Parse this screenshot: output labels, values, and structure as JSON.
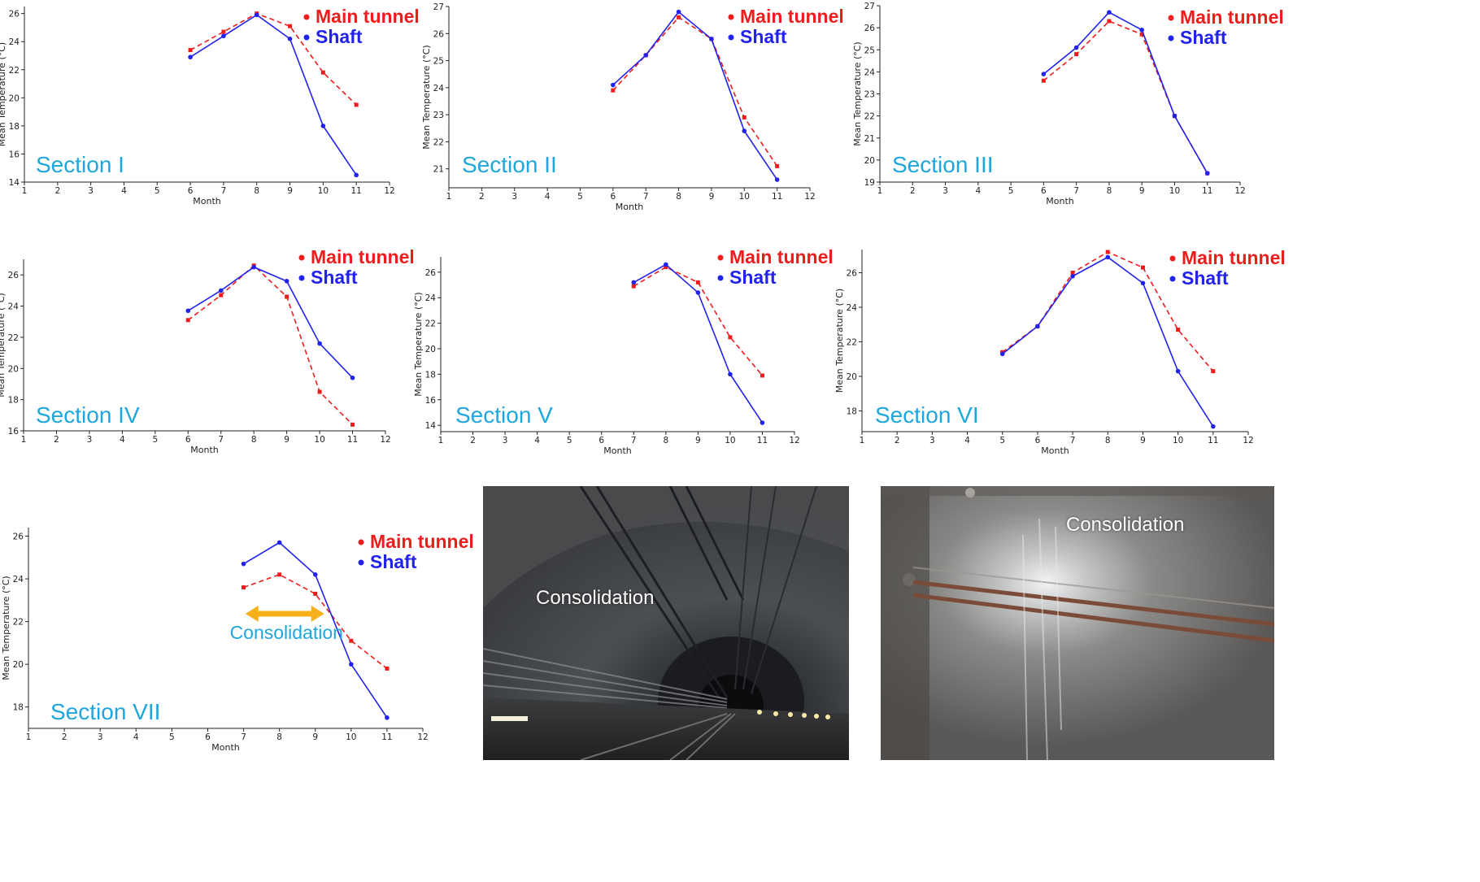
{
  "colors": {
    "main_tunnel": "#ee1c1c",
    "shaft": "#2222ee",
    "section_label": "#1fa6dc",
    "arrow": "#f5b01a"
  },
  "legend": {
    "main": "Main tunnel",
    "shaft": "Shaft"
  },
  "consolidation_note": "Consolidation",
  "chart_data": [
    {
      "type": "line",
      "section": "Section I",
      "xlabel": "Month",
      "ylabel": "Mean Temperature (°C)",
      "xlim": [
        1,
        12
      ],
      "ylim": [
        14,
        26.5
      ],
      "xticks": [
        1,
        2,
        3,
        4,
        5,
        6,
        7,
        8,
        9,
        10,
        11,
        12
      ],
      "yticks": [
        14,
        16,
        18,
        20,
        22,
        24,
        26
      ],
      "series": [
        {
          "name": "Main tunnel",
          "x": [
            6,
            7,
            8,
            9,
            10,
            11
          ],
          "values": [
            23.4,
            24.7,
            26.0,
            25.1,
            21.8,
            19.5
          ]
        },
        {
          "name": "Shaft",
          "x": [
            6,
            7,
            8,
            9,
            10,
            11
          ],
          "values": [
            22.9,
            24.4,
            25.9,
            24.2,
            18.0,
            14.5
          ]
        }
      ]
    },
    {
      "type": "line",
      "section": "Section II",
      "xlabel": "Month",
      "ylabel": "Mean Temperature (°C)",
      "xlim": [
        1,
        12
      ],
      "ylim": [
        20.3,
        27
      ],
      "xticks": [
        1,
        2,
        3,
        4,
        5,
        6,
        7,
        8,
        9,
        10,
        11,
        12
      ],
      "yticks": [
        21,
        22,
        23,
        24,
        25,
        26,
        27
      ],
      "series": [
        {
          "name": "Main tunnel",
          "x": [
            6,
            7,
            8,
            9,
            10,
            11
          ],
          "values": [
            23.9,
            25.2,
            26.6,
            25.8,
            22.9,
            21.1
          ]
        },
        {
          "name": "Shaft",
          "x": [
            6,
            7,
            8,
            9,
            10,
            11
          ],
          "values": [
            24.1,
            25.2,
            26.8,
            25.8,
            22.4,
            20.6
          ]
        }
      ]
    },
    {
      "type": "line",
      "section": "Section III",
      "xlabel": "Month",
      "ylabel": "Mean Temperature (°C)",
      "xlim": [
        1,
        12
      ],
      "ylim": [
        19,
        27
      ],
      "xticks": [
        1,
        2,
        3,
        4,
        5,
        6,
        7,
        8,
        9,
        10,
        11,
        12
      ],
      "yticks": [
        19,
        20,
        21,
        22,
        23,
        24,
        25,
        26,
        27
      ],
      "series": [
        {
          "name": "Main tunnel",
          "x": [
            6,
            7,
            8,
            9,
            10,
            11
          ],
          "values": [
            23.6,
            24.8,
            26.3,
            25.7,
            22.0,
            19.4
          ]
        },
        {
          "name": "Shaft",
          "x": [
            6,
            7,
            8,
            9,
            10,
            11
          ],
          "values": [
            23.9,
            25.1,
            26.7,
            25.9,
            22.0,
            19.4
          ]
        }
      ]
    },
    {
      "type": "line",
      "section": "Section IV",
      "xlabel": "Month",
      "ylabel": "Mean Temperature (°C)",
      "xlim": [
        1,
        12
      ],
      "ylim": [
        16,
        27
      ],
      "xticks": [
        1,
        2,
        3,
        4,
        5,
        6,
        7,
        8,
        9,
        10,
        11,
        12
      ],
      "yticks": [
        16,
        18,
        20,
        22,
        24,
        26
      ],
      "series": [
        {
          "name": "Main tunnel",
          "x": [
            6,
            7,
            8,
            9,
            10,
            11
          ],
          "values": [
            23.1,
            24.7,
            26.6,
            24.6,
            18.5,
            16.4
          ]
        },
        {
          "name": "Shaft",
          "x": [
            6,
            7,
            8,
            9,
            10,
            11
          ],
          "values": [
            23.7,
            25.0,
            26.5,
            25.6,
            21.6,
            19.4
          ]
        }
      ]
    },
    {
      "type": "line",
      "section": "Section V",
      "xlabel": "Month",
      "ylabel": "Mean Temperature (°C)",
      "xlim": [
        1,
        12
      ],
      "ylim": [
        13.5,
        27.2
      ],
      "xticks": [
        1,
        2,
        3,
        4,
        5,
        6,
        7,
        8,
        9,
        10,
        11,
        12
      ],
      "yticks": [
        14,
        16,
        18,
        20,
        22,
        24,
        26
      ],
      "series": [
        {
          "name": "Main tunnel",
          "x": [
            7,
            8,
            9,
            10,
            11
          ],
          "values": [
            24.9,
            26.4,
            25.2,
            20.9,
            17.9
          ]
        },
        {
          "name": "Shaft",
          "x": [
            7,
            8,
            9,
            10,
            11
          ],
          "values": [
            25.2,
            26.6,
            24.4,
            18.0,
            14.2
          ]
        }
      ]
    },
    {
      "type": "line",
      "section": "Section VI",
      "xlabel": "Month",
      "ylabel": "Mean Temperature (°C)",
      "xlim": [
        1,
        12
      ],
      "ylim": [
        16.8,
        28
      ],
      "xticks": [
        1,
        2,
        3,
        4,
        5,
        6,
        7,
        8,
        9,
        10,
        11,
        12
      ],
      "yticks": [
        18,
        20,
        22,
        24,
        26
      ],
      "series": [
        {
          "name": "Main tunnel",
          "x": [
            5,
            6,
            7,
            8,
            9,
            10,
            11
          ],
          "values": [
            21.4,
            22.9,
            26.0,
            27.2,
            26.3,
            22.7,
            20.3
          ]
        },
        {
          "name": "Shaft",
          "x": [
            5,
            6,
            7,
            8,
            9,
            10,
            11
          ],
          "values": [
            21.3,
            22.9,
            25.8,
            26.9,
            25.4,
            20.3,
            17.1
          ]
        }
      ]
    },
    {
      "type": "line",
      "section": "Section VII",
      "xlabel": "Month",
      "ylabel": "Mean Temperature (°C)",
      "xlim": [
        1,
        12
      ],
      "ylim": [
        17,
        26.4
      ],
      "xticks": [
        1,
        2,
        3,
        4,
        5,
        6,
        7,
        8,
        9,
        10,
        11,
        12
      ],
      "yticks": [
        18,
        20,
        22,
        24,
        26
      ],
      "series": [
        {
          "name": "Main tunnel",
          "x": [
            7,
            8,
            9,
            10,
            11
          ],
          "values": [
            23.6,
            24.2,
            23.3,
            21.1,
            19.8
          ]
        },
        {
          "name": "Shaft",
          "x": [
            7,
            8,
            9,
            10,
            11
          ],
          "values": [
            24.7,
            25.7,
            24.2,
            20.0,
            17.5
          ]
        }
      ]
    }
  ],
  "photos": [
    {
      "caption": "Consolidation"
    },
    {
      "caption": "Consolidation"
    }
  ]
}
